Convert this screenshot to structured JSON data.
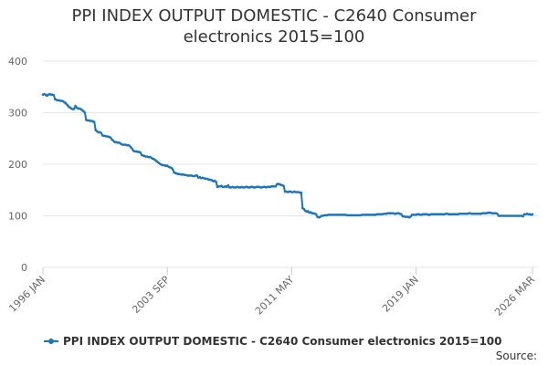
{
  "chart_data": {
    "type": "line",
    "title": "PPI INDEX OUTPUT DOMESTIC - C2640 Consumer electronics 2015=100",
    "source": "Source:",
    "categories": [
      "1996 JAN",
      null,
      null,
      null,
      null,
      null,
      null,
      null,
      null,
      null,
      null,
      null,
      null,
      null,
      null,
      null,
      null,
      null,
      null,
      null,
      null,
      null,
      null,
      null,
      null,
      null,
      null,
      null,
      null,
      null,
      null,
      null,
      null,
      null,
      null,
      null,
      null,
      null,
      null,
      null,
      null,
      null,
      null,
      null,
      null,
      null,
      null,
      null,
      null,
      null,
      null,
      null,
      null,
      null,
      null,
      null,
      null,
      null,
      null,
      null,
      null,
      null,
      null,
      null,
      null,
      null,
      null,
      null,
      null,
      null,
      null,
      null,
      null,
      null,
      null,
      null,
      null,
      null,
      null,
      null,
      null,
      null,
      null,
      null,
      null,
      null,
      null,
      null,
      null,
      null,
      null,
      null,
      "2003 SEP",
      null,
      null,
      null,
      null,
      null,
      null,
      null,
      null,
      null,
      null,
      null,
      null,
      null,
      null,
      null,
      null,
      null,
      null,
      null,
      null,
      null,
      null,
      null,
      null,
      null,
      null,
      null,
      null,
      null,
      null,
      null,
      null,
      null,
      null,
      null,
      null,
      null,
      null,
      null,
      null,
      null,
      null,
      null,
      null,
      null,
      null,
      null,
      null,
      null,
      null,
      null,
      null,
      null,
      null,
      null,
      null,
      null,
      null,
      null,
      null,
      null,
      null,
      null,
      null,
      null,
      null,
      null,
      null,
      null,
      null,
      null,
      null,
      null,
      null,
      null,
      null,
      null,
      null,
      null,
      null,
      null,
      null,
      null,
      null,
      null,
      null,
      null,
      null,
      null,
      null,
      null,
      "2011 MAY",
      null,
      null,
      null,
      null,
      null,
      null,
      null,
      null,
      null,
      null,
      null,
      null,
      null,
      null,
      null,
      null,
      null,
      null,
      null,
      null,
      null,
      null,
      null,
      null,
      null,
      null,
      null,
      null,
      null,
      null,
      null,
      null,
      null,
      null,
      null,
      null,
      null,
      null,
      null,
      null,
      null,
      null,
      null,
      null,
      null,
      null,
      null,
      null,
      null,
      null,
      null,
      null,
      null,
      null,
      null,
      null,
      null,
      null,
      null,
      null,
      null,
      null,
      null,
      null,
      null,
      null,
      null,
      null,
      null,
      null,
      null,
      null,
      null,
      null,
      null,
      null,
      null,
      null,
      null,
      null,
      null,
      null,
      null,
      null,
      null,
      null,
      null,
      null,
      null,
      null,
      null,
      "2019 JAN",
      null,
      null,
      null,
      null,
      null,
      null,
      null,
      null,
      null,
      null,
      null,
      null,
      null,
      null,
      null,
      null,
      null,
      null,
      null,
      null,
      null,
      null,
      null,
      null,
      null,
      null,
      null,
      null,
      null,
      null,
      null,
      null,
      null,
      null,
      null,
      null,
      null,
      null,
      null,
      null,
      null,
      null,
      null,
      null,
      null,
      null,
      null,
      null,
      null,
      null,
      null,
      null,
      null,
      null,
      null,
      null,
      null,
      null,
      null,
      null,
      null,
      null,
      null,
      null,
      null,
      null,
      null,
      null,
      null,
      null,
      null,
      null,
      null,
      null,
      null,
      null,
      null,
      null,
      null,
      null,
      null,
      null,
      null,
      null,
      null,
      "2026 MAR"
    ],
    "series": [
      {
        "name": "PPI INDEX OUTPUT DOMESTIC - C2640 Consumer electronics 2015=100",
        "color": "#1b75bc",
        "values": [
          335,
          336,
          335,
          333,
          335,
          336,
          335,
          335,
          334,
          326,
          325,
          324,
          324,
          323,
          323,
          322,
          320,
          318,
          315,
          312,
          310,
          308,
          307,
          307,
          313,
          310,
          308,
          308,
          307,
          305,
          303,
          300,
          286,
          285,
          285,
          284,
          284,
          283,
          282,
          266,
          264,
          262,
          262,
          261,
          256,
          255,
          255,
          254,
          254,
          253,
          252,
          248,
          246,
          243,
          243,
          242,
          242,
          241,
          239,
          238,
          238,
          238,
          237,
          237,
          236,
          233,
          230,
          226,
          225,
          225,
          224,
          224,
          223,
          218,
          217,
          216,
          215,
          215,
          214,
          214,
          213,
          211,
          210,
          208,
          206,
          204,
          202,
          200,
          199,
          198,
          198,
          197,
          197,
          195,
          194,
          193,
          190,
          184,
          183,
          182,
          181,
          181,
          180,
          180,
          180,
          179,
          179,
          178,
          178,
          178,
          178,
          177,
          177,
          178,
          178,
          174,
          175,
          173,
          174,
          173,
          172,
          172,
          171,
          170,
          170,
          169,
          167,
          168,
          166,
          156,
          157,
          157,
          158,
          156,
          156,
          157,
          156,
          159,
          155,
          155,
          156,
          155,
          155,
          155,
          156,
          155,
          155,
          156,
          155,
          155,
          156,
          156,
          155,
          155,
          156,
          156,
          155,
          155,
          156,
          156,
          156,
          155,
          155,
          156,
          156,
          155,
          156,
          156,
          156,
          157,
          157,
          157,
          157,
          161,
          162,
          161,
          160,
          159,
          158,
          147,
          147,
          146,
          147,
          147,
          146,
          146,
          147,
          146,
          146,
          146,
          145,
          145,
          115,
          113,
          110,
          108,
          109,
          106,
          107,
          105,
          105,
          104,
          103,
          98,
          97,
          98,
          100,
          100,
          101,
          101,
          101,
          102,
          102,
          102,
          102,
          102,
          102,
          102,
          102,
          102,
          102,
          102,
          102,
          102,
          102,
          101,
          101,
          101,
          101,
          101,
          101,
          101,
          101,
          101,
          101,
          101,
          102,
          102,
          102,
          102,
          102,
          102,
          102,
          102,
          102,
          102,
          102,
          103,
          103,
          103,
          103,
          103,
          104,
          104,
          104,
          105,
          105,
          105,
          105,
          105,
          104,
          104,
          105,
          105,
          104,
          103,
          99,
          99,
          98,
          98,
          98,
          97,
          99,
          102,
          102,
          102,
          102,
          103,
          103,
          102,
          102,
          103,
          103,
          103,
          103,
          102,
          102,
          103,
          103,
          103,
          103,
          103,
          103,
          103,
          103,
          103,
          103,
          103,
          104,
          104,
          103,
          103,
          103,
          103,
          103,
          103,
          103,
          103,
          104,
          104,
          104,
          104,
          104,
          104,
          104,
          105,
          105,
          104,
          104,
          104,
          104,
          104,
          104,
          104,
          104,
          105,
          105,
          105,
          105,
          106,
          106,
          106,
          105,
          105,
          105,
          105,
          104,
          100,
          100,
          100,
          100,
          100,
          100,
          100,
          100,
          100,
          100,
          100,
          100,
          100,
          100,
          100,
          100,
          100,
          100,
          99,
          103,
          103,
          104,
          103,
          103,
          102,
          103
        ]
      }
    ],
    "ylim": [
      0,
      400
    ],
    "yticks": [
      0,
      100,
      200,
      300,
      400
    ],
    "grid": true,
    "legend": "bottom"
  }
}
